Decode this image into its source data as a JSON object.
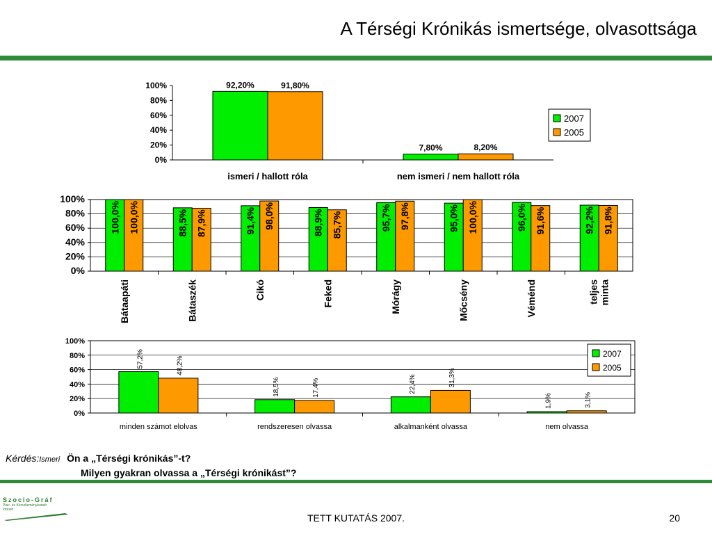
{
  "slide": {
    "title": "A Térségi Krónikás ismertsége, olvasottsága",
    "question_label": "Kérdés:",
    "question_tag": "Ismeri",
    "question_1": "Ön a „Térségi krónikás”-t?",
    "question_2": "Milyen gyakran olvassa a „Térségi krónikást”?",
    "footer": "TETT KUTATÁS 2007.",
    "page_number": "20",
    "logo_name": "Szocio-Gráf",
    "logo_sub_1": "Piac- és Közvéleménykutató",
    "logo_sub_2": "Intézet"
  },
  "colors": {
    "s2007": "#00ee00",
    "s2005": "#ff9900",
    "accent": "#2e8b3a"
  },
  "chart_data": [
    {
      "type": "bar",
      "categories": [
        "ismeri / hallott róla",
        "nem ismeri / nem hallott róla"
      ],
      "series": [
        {
          "name": "2007",
          "values": [
            92.2,
            7.8
          ],
          "labels": [
            "92,20%",
            "7,80%"
          ]
        },
        {
          "name": "2005",
          "values": [
            91.8,
            8.2
          ],
          "labels": [
            "91,80%",
            "8,20%"
          ]
        }
      ],
      "ylim": [
        0,
        100
      ],
      "yticks": [
        "0%",
        "20%",
        "40%",
        "60%",
        "80%",
        "100%"
      ],
      "legend": "right"
    },
    {
      "type": "bar",
      "categories": [
        "Bátaapáti",
        "Bátaszék",
        "Cikó",
        "Feked",
        "Mórágy",
        "Mőcsény",
        "Véménd",
        "teljes minta"
      ],
      "series": [
        {
          "name": "2007",
          "values": [
            100.0,
            88.5,
            91.4,
            88.9,
            95.7,
            95.0,
            96.0,
            92.2
          ],
          "labels": [
            "100,0%",
            "88,5%",
            "91,4%",
            "88,9%",
            "95,7%",
            "95,0%",
            "96,0%",
            "92,2%"
          ]
        },
        {
          "name": "2005",
          "values": [
            100.0,
            87.9,
            98.0,
            85.7,
            97.8,
            100.0,
            91.6,
            91.8
          ],
          "labels": [
            "100,0%",
            "87,9%",
            "98,0%",
            "85,7%",
            "97,8%",
            "100,0%",
            "91,6%",
            "91,8%"
          ]
        }
      ],
      "ylim": [
        0,
        100
      ],
      "yticks": [
        "0%",
        "20%",
        "40%",
        "60%",
        "80%",
        "100%"
      ]
    },
    {
      "type": "bar",
      "categories": [
        "minden számot elolvas",
        "rendszeresen olvassa",
        "alkalmanként olvassa",
        "nem olvassa"
      ],
      "series": [
        {
          "name": "2007",
          "values": [
            57.2,
            18.5,
            22.4,
            1.9
          ],
          "labels": [
            "57,2%",
            "18,5%",
            "22,4%",
            "1,9%"
          ]
        },
        {
          "name": "2005",
          "values": [
            48.2,
            17.4,
            31.3,
            3.1
          ],
          "labels": [
            "48,2%",
            "17,4%",
            "31,3%",
            "3,1%"
          ]
        }
      ],
      "ylim": [
        0,
        100
      ],
      "yticks": [
        "0%",
        "20%",
        "40%",
        "60%",
        "80%",
        "100%"
      ],
      "legend": "right"
    }
  ]
}
